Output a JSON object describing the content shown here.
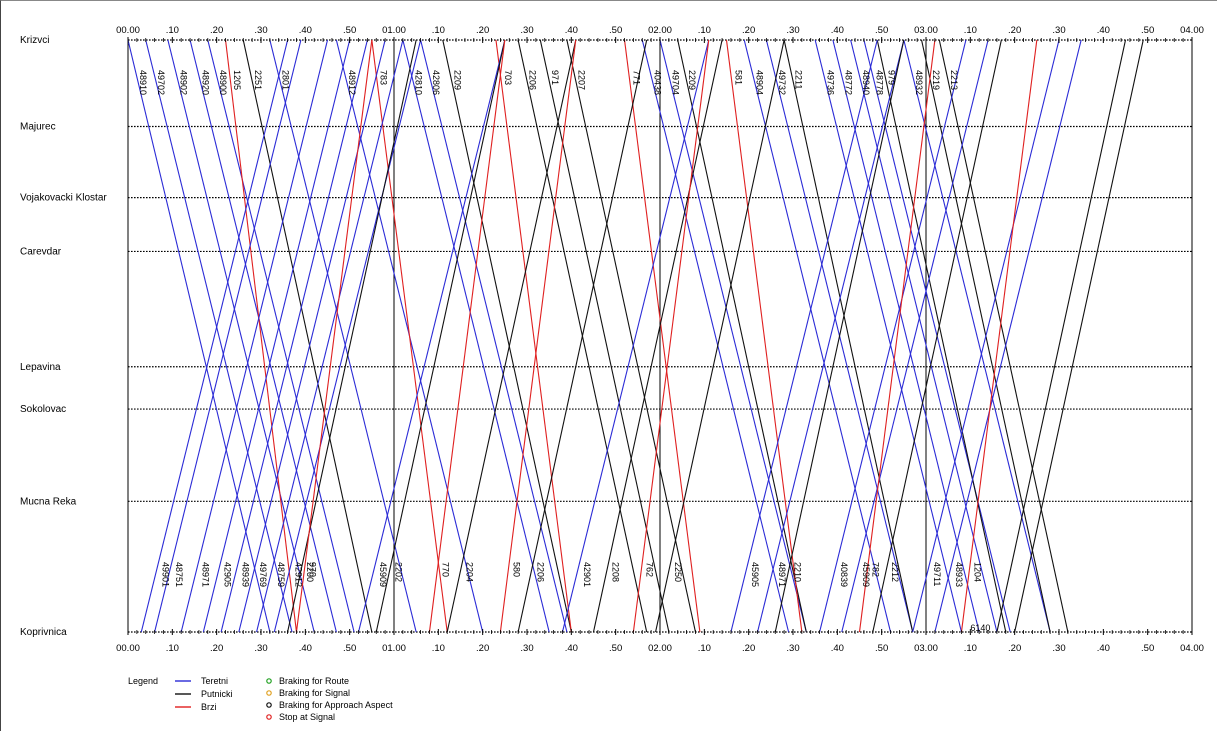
{
  "chart_data": {
    "type": "line",
    "title": "",
    "xlabel": "",
    "ylabel": "",
    "x_range_minutes": [
      0,
      240
    ],
    "x_ticks": [
      "00.00",
      ".10",
      ".20",
      ".30",
      ".40",
      ".50",
      "01.00",
      ".10",
      ".20",
      ".30",
      ".40",
      ".50",
      "02.00",
      ".10",
      ".20",
      ".30",
      ".40",
      ".50",
      "03.00",
      ".10",
      ".20",
      ".30",
      ".40",
      ".50",
      "04.00"
    ],
    "stations": [
      {
        "name": "Krizvci",
        "km": 0
      },
      {
        "name": "Majurec",
        "km": 4.5
      },
      {
        "name": "Vojakovacki Klostar",
        "km": 8.2
      },
      {
        "name": "Carevdar",
        "km": 11.0
      },
      {
        "name": "Lepavina",
        "km": 17.0
      },
      {
        "name": "Sokolovac",
        "km": 19.2
      },
      {
        "name": "Mucna Reka",
        "km": 24.0
      },
      {
        "name": "Koprivnica",
        "km": 30.8
      }
    ],
    "grid": true,
    "legend_title": "Legend",
    "legend": [
      {
        "name": "Teretni",
        "color": "#2b2bd6"
      },
      {
        "name": "Putnicki",
        "color": "#111111"
      },
      {
        "name": "Brzi",
        "color": "#e02020"
      }
    ],
    "markers_legend": [
      {
        "name": "Braking for Route",
        "color": "#20a020"
      },
      {
        "name": "Braking for Signal",
        "color": "#e0a020"
      },
      {
        "name": "Braking for Approach Aspect",
        "color": "#111111"
      },
      {
        "name": "Stop at Signal",
        "color": "#e02020"
      }
    ],
    "series": [
      {
        "category": "Teretni",
        "direction": "down",
        "start_min": 0,
        "end_min": 32,
        "label": "48910"
      },
      {
        "category": "Teretni",
        "direction": "down",
        "start_min": 4,
        "end_min": 37,
        "label": "49702"
      },
      {
        "category": "Teretni",
        "direction": "down",
        "start_min": 9,
        "end_min": 42,
        "label": "48902"
      },
      {
        "category": "Teretni",
        "direction": "down",
        "start_min": 14,
        "end_min": 47,
        "label": "48920"
      },
      {
        "category": "Teretni",
        "direction": "down",
        "start_min": 18,
        "end_min": 51,
        "label": "48900"
      },
      {
        "category": "Brzi",
        "direction": "down",
        "start_min": 22,
        "end_min": 38,
        "label": "1205"
      },
      {
        "category": "Putnicki",
        "direction": "down",
        "start_min": 26,
        "end_min": 55,
        "label": "2251"
      },
      {
        "category": "Teretni",
        "direction": "down",
        "start_min": 32,
        "end_min": 65,
        "label": "2801"
      },
      {
        "category": "Teretni",
        "direction": "down",
        "start_min": 47,
        "end_min": 80,
        "label": "48912"
      },
      {
        "category": "Brzi",
        "direction": "down",
        "start_min": 55,
        "end_min": 72,
        "label": "783"
      },
      {
        "category": "Teretni",
        "direction": "down",
        "start_min": 62,
        "end_min": 95,
        "label": "42810"
      },
      {
        "category": "Teretni",
        "direction": "down",
        "start_min": 66,
        "end_min": 99,
        "label": "42806"
      },
      {
        "category": "Putnicki",
        "direction": "down",
        "start_min": 71,
        "end_min": 100,
        "label": "2209"
      },
      {
        "category": "Brzi",
        "direction": "down",
        "start_min": 83,
        "end_min": 100,
        "label": "703"
      },
      {
        "category": "Putnicki",
        "direction": "down",
        "start_min": 88,
        "end_min": 117,
        "label": "2206"
      },
      {
        "category": "Putnicki",
        "direction": "down",
        "start_min": 93,
        "end_min": 122,
        "label": "971"
      },
      {
        "category": "Putnicki",
        "direction": "down",
        "start_min": 99,
        "end_min": 128,
        "label": "2207"
      },
      {
        "category": "Brzi",
        "direction": "down",
        "start_min": 112,
        "end_min": 129,
        "label": "771"
      },
      {
        "category": "Teretni",
        "direction": "down",
        "start_min": 116,
        "end_min": 149,
        "label": "40438"
      },
      {
        "category": "Teretni",
        "direction": "down",
        "start_min": 120,
        "end_min": 153,
        "label": "49704"
      },
      {
        "category": "Putnicki",
        "direction": "down",
        "start_min": 124,
        "end_min": 153,
        "label": "2209"
      },
      {
        "category": "Brzi",
        "direction": "down",
        "start_min": 135,
        "end_min": 152,
        "label": "581"
      },
      {
        "category": "Teretni",
        "direction": "down",
        "start_min": 139,
        "end_min": 172,
        "label": "48904"
      },
      {
        "category": "Teretni",
        "direction": "down",
        "start_min": 144,
        "end_min": 177,
        "label": "49732"
      },
      {
        "category": "Putnicki",
        "direction": "down",
        "start_min": 148,
        "end_min": 177,
        "label": "2211"
      },
      {
        "category": "Teretni",
        "direction": "down",
        "start_min": 155,
        "end_min": 188,
        "label": "49736"
      },
      {
        "category": "Teretni",
        "direction": "down",
        "start_min": 159,
        "end_min": 192,
        "label": "48772"
      },
      {
        "category": "Teretni",
        "direction": "down",
        "start_min": 163,
        "end_min": 196,
        "label": "48940"
      },
      {
        "category": "Teretni",
        "direction": "down",
        "start_min": 166,
        "end_min": 199,
        "label": "48778"
      },
      {
        "category": "Putnicki",
        "direction": "down",
        "start_min": 169,
        "end_min": 198,
        "label": "979"
      },
      {
        "category": "Teretni",
        "direction": "down",
        "start_min": 175,
        "end_min": 208,
        "label": "48932"
      },
      {
        "category": "Putnicki",
        "direction": "down",
        "start_min": 179,
        "end_min": 208,
        "label": "2219"
      },
      {
        "category": "Putnicki",
        "direction": "down",
        "start_min": 183,
        "end_min": 212,
        "label": "2213"
      },
      {
        "category": "Teretni",
        "direction": "up",
        "start_min": 3,
        "end_min": 36,
        "label": "49901"
      },
      {
        "category": "Teretni",
        "direction": "up",
        "start_min": 6,
        "end_min": 39,
        "label": "48751"
      },
      {
        "category": "Teretni",
        "direction": "up",
        "start_min": 12,
        "end_min": 45,
        "label": "48971"
      },
      {
        "category": "Teretni",
        "direction": "up",
        "start_min": 17,
        "end_min": 50,
        "label": "42905"
      },
      {
        "category": "Teretni",
        "direction": "up",
        "start_min": 21,
        "end_min": 54,
        "label": "48939"
      },
      {
        "category": "Teretni",
        "direction": "up",
        "start_min": 25,
        "end_min": 58,
        "label": "49769"
      },
      {
        "category": "Teretni",
        "direction": "up",
        "start_min": 29,
        "end_min": 62,
        "label": "48759"
      },
      {
        "category": "Teretni",
        "direction": "up",
        "start_min": 33,
        "end_min": 66,
        "label": "42912"
      },
      {
        "category": "Putnicki",
        "direction": "up",
        "start_min": 36,
        "end_min": 65,
        "label": "2200"
      },
      {
        "category": "Brzi",
        "direction": "up",
        "start_min": 38,
        "end_min": 55,
        "label": "970"
      },
      {
        "category": "Teretni",
        "direction": "up",
        "start_min": 52,
        "end_min": 85,
        "label": "45909"
      },
      {
        "category": "Putnicki",
        "direction": "up",
        "start_min": 56,
        "end_min": 85,
        "label": "2202"
      },
      {
        "category": "Brzi",
        "direction": "up",
        "start_min": 68,
        "end_min": 85,
        "label": "770"
      },
      {
        "category": "Putnicki",
        "direction": "up",
        "start_min": 72,
        "end_min": 101,
        "label": "2204"
      },
      {
        "category": "Brzi",
        "direction": "up",
        "start_min": 84,
        "end_min": 101,
        "label": "580"
      },
      {
        "category": "Putnicki",
        "direction": "up",
        "start_min": 88,
        "end_min": 117,
        "label": "2206"
      },
      {
        "category": "Teretni",
        "direction": "up",
        "start_min": 98,
        "end_min": 131,
        "label": "42901"
      },
      {
        "category": "Putnicki",
        "direction": "up",
        "start_min": 105,
        "end_min": 134,
        "label": "2208"
      },
      {
        "category": "Brzi",
        "direction": "up",
        "start_min": 114,
        "end_min": 131,
        "label": "762"
      },
      {
        "category": "Putnicki",
        "direction": "up",
        "start_min": 119,
        "end_min": 148,
        "label": "2250"
      },
      {
        "category": "Teretni",
        "direction": "up",
        "start_min": 136,
        "end_min": 169,
        "label": "45905"
      },
      {
        "category": "Teretni",
        "direction": "up",
        "start_min": 142,
        "end_min": 175,
        "label": "48971"
      },
      {
        "category": "Putnicki",
        "direction": "up",
        "start_min": 146,
        "end_min": 175,
        "label": "2210"
      },
      {
        "category": "Teretni",
        "direction": "up",
        "start_min": 156,
        "end_min": 189,
        "label": "40839"
      },
      {
        "category": "Teretni",
        "direction": "up",
        "start_min": 161,
        "end_min": 194,
        "label": "45909"
      },
      {
        "category": "Brzi",
        "direction": "up",
        "start_min": 165,
        "end_min": 182,
        "label": "782"
      },
      {
        "category": "Putnicki",
        "direction": "up",
        "start_min": 168,
        "end_min": 197,
        "label": "2212"
      },
      {
        "category": "Teretni",
        "direction": "up",
        "start_min": 177,
        "end_min": 210,
        "label": "49711"
      },
      {
        "category": "Teretni",
        "direction": "up",
        "start_min": 182,
        "end_min": 215,
        "label": "48933"
      },
      {
        "category": "Brzi",
        "direction": "up",
        "start_min": 188,
        "end_min": 205,
        "label": "1204"
      },
      {
        "category": "Putnicki",
        "direction": "up",
        "start_min": 196,
        "end_min": 225,
        "label": ""
      },
      {
        "category": "Putnicki",
        "direction": "up",
        "start_min": 200,
        "end_min": 229,
        "label": ""
      }
    ],
    "extra_labels": [
      {
        "text": "6140",
        "min": 190,
        "at": "Koprivnica"
      }
    ]
  }
}
